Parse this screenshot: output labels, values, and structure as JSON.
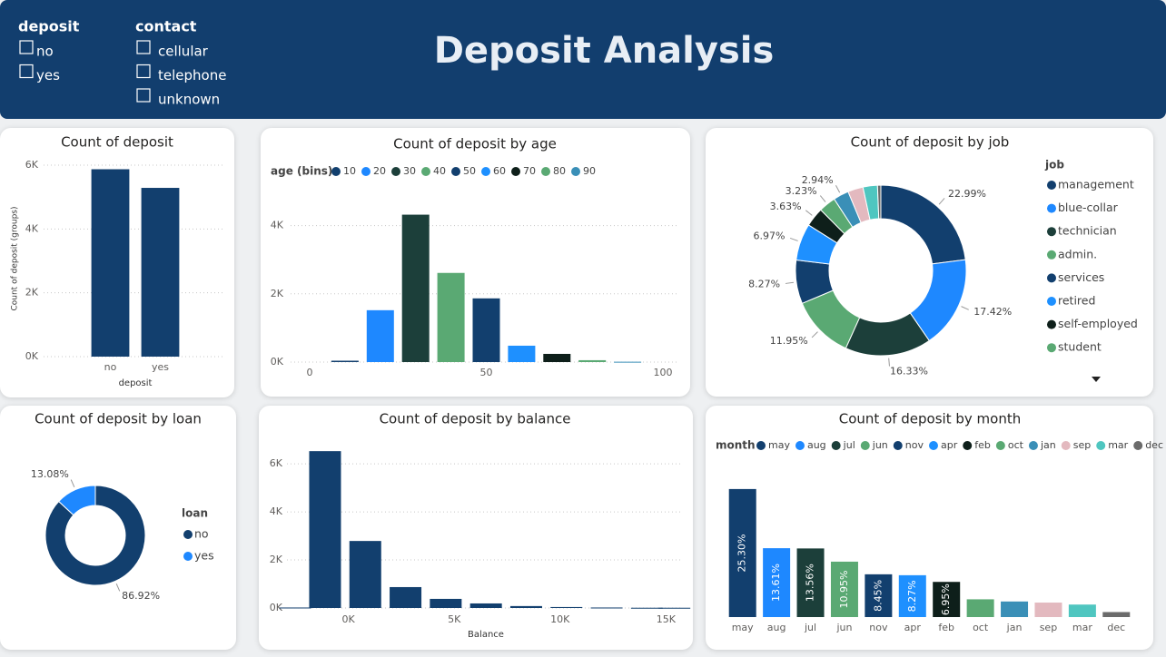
{
  "header": {
    "title": "Deposit Analysis",
    "slicers": [
      {
        "title": "deposit",
        "items": [
          "no",
          "yes"
        ]
      },
      {
        "title": "contact",
        "items": [
          "cellular",
          "telephone",
          "unknown"
        ]
      }
    ]
  },
  "chart_data": [
    {
      "type": "bar",
      "title": "Count of deposit",
      "x_label": "deposit",
      "y_label": "Count of deposit (groups)",
      "categories": [
        "no",
        "yes"
      ],
      "values": [
        5873,
        5289
      ],
      "color": "#123f6e",
      "ylim": [
        0,
        6200
      ],
      "yticks": [
        {
          "value": 0,
          "label": "0K"
        },
        {
          "value": 2000,
          "label": "2K"
        },
        {
          "value": 4000,
          "label": "4K"
        },
        {
          "value": 6000,
          "label": "6K"
        }
      ],
      "grid": true
    },
    {
      "type": "bar",
      "title": "Count of deposit by age",
      "legend_title": "age (bins)",
      "x": [
        10,
        20,
        30,
        40,
        50,
        60,
        70,
        80,
        90
      ],
      "values": [
        40,
        1520,
        4320,
        2613,
        1867,
        480,
        240,
        55,
        10
      ],
      "colors": [
        "#123f6e",
        "#1e88ff",
        "#1c3f3a",
        "#5aa973",
        "#123f6e",
        "#1e90ff",
        "#0e1f1a",
        "#5aa973",
        "#3a8fb7"
      ],
      "xlim": [
        0,
        100
      ],
      "xticks": [
        0,
        50,
        100
      ],
      "ylim": [
        0,
        5000
      ],
      "yticks": [
        {
          "value": 0,
          "label": "0K"
        },
        {
          "value": 2000,
          "label": "2K"
        },
        {
          "value": 4000,
          "label": "4K"
        }
      ],
      "grid": true
    },
    {
      "type": "donut",
      "title": "Count of deposit by job",
      "legend_title": "job",
      "categories": [
        "management",
        "blue-collar",
        "technician",
        "admin.",
        "services",
        "retired",
        "self-employed",
        "student",
        null,
        null,
        null,
        null
      ],
      "values": [
        22.99,
        17.42,
        16.33,
        11.95,
        8.27,
        6.97,
        3.63,
        3.23,
        2.94,
        2.9,
        2.74,
        0.63
      ],
      "value_labels": [
        "22.99%",
        "17.42%",
        "16.33%",
        "11.95%",
        "8.27%",
        "6.97%",
        "3.63%",
        "3.23%",
        "2.94%",
        null,
        null,
        null
      ],
      "colors": [
        "#123f6e",
        "#1e88ff",
        "#1c3f3a",
        "#5aa973",
        "#123f6e",
        "#1e90ff",
        "#0e1f1a",
        "#5aa973",
        "#3a8fb7",
        "#e3b9bf",
        "#4fc6c0",
        "#6b6b6b"
      ]
    },
    {
      "type": "donut",
      "title": "Count of deposit by loan",
      "legend_title": "loan",
      "categories": [
        "no",
        "yes"
      ],
      "values": [
        86.92,
        13.08
      ],
      "value_labels": [
        "86.92%",
        "13.08%"
      ],
      "colors": [
        "#123f6e",
        "#1e88ff"
      ]
    },
    {
      "type": "bar",
      "title": "Count of deposit by balance",
      "x_label": "Balance",
      "x": [
        -2500,
        -1100,
        800,
        2700,
        4600,
        6500,
        8400,
        10300,
        12200,
        14100,
        15400
      ],
      "values": [
        20,
        6530,
        2790,
        870,
        380,
        190,
        80,
        40,
        20,
        10,
        10
      ],
      "color": "#123f6e",
      "xlim": [
        -2900,
        15800
      ],
      "xticks": [
        {
          "value": 0,
          "label": "0K"
        },
        {
          "value": 5000,
          "label": "5K"
        },
        {
          "value": 10000,
          "label": "10K"
        },
        {
          "value": 15000,
          "label": "15K"
        }
      ],
      "ylim": [
        0,
        6800
      ],
      "yticks": [
        {
          "value": 0,
          "label": "0K"
        },
        {
          "value": 2000,
          "label": "2K"
        },
        {
          "value": 4000,
          "label": "4K"
        },
        {
          "value": 6000,
          "label": "6K"
        }
      ],
      "grid": true
    },
    {
      "type": "bar",
      "title": "Count of deposit by month",
      "legend_title": "month",
      "categories": [
        "may",
        "aug",
        "jul",
        "jun",
        "nov",
        "apr",
        "feb",
        "oct",
        "jan",
        "sep",
        "mar",
        "dec"
      ],
      "values": [
        25.3,
        13.61,
        13.56,
        10.95,
        8.45,
        8.27,
        6.95,
        3.51,
        3.08,
        2.86,
        2.47,
        0.99
      ],
      "value_labels": [
        "25.30%",
        "13.61%",
        "13.56%",
        "10.95%",
        "8.45%",
        "8.27%",
        "6.95%",
        null,
        null,
        null,
        null,
        null
      ],
      "colors": [
        "#123f6e",
        "#1e88ff",
        "#1c3f3a",
        "#5aa973",
        "#123f6e",
        "#1e90ff",
        "#0e1f1a",
        "#5aa973",
        "#3a8fb7",
        "#e3b9bf",
        "#4fc6c0",
        "#6b6b6b"
      ],
      "ylim": [
        0,
        26
      ]
    }
  ]
}
